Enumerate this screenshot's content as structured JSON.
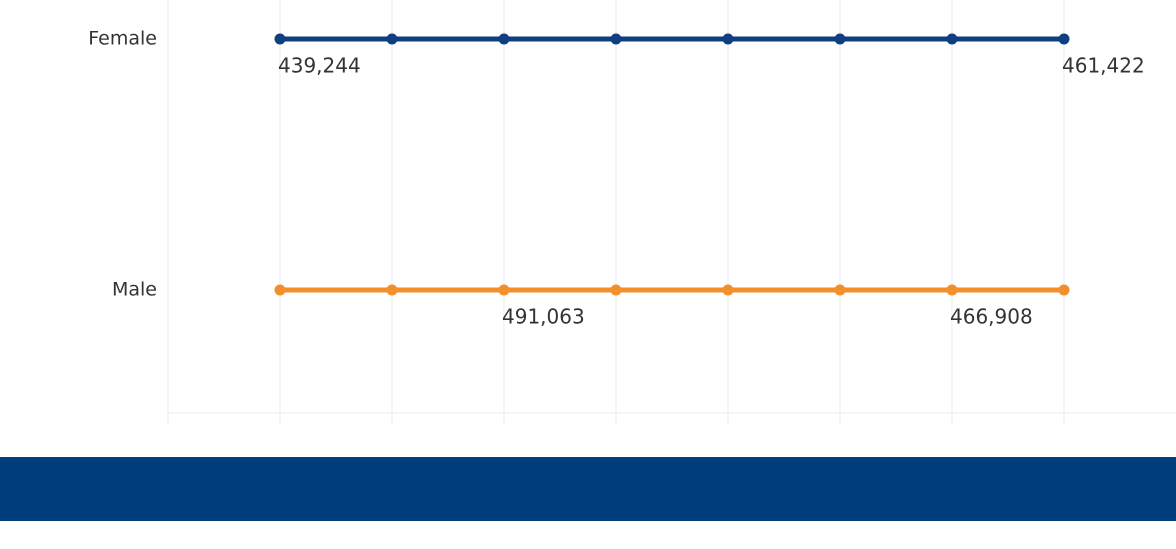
{
  "chart_data": {
    "type": "line",
    "categories": [
      null,
      null,
      null,
      null,
      null,
      null,
      null,
      null
    ],
    "rows": [
      "Female",
      "Male"
    ],
    "series": [
      {
        "name": "Female",
        "color": "#0e3f7e",
        "values": [
          439244,
          null,
          null,
          null,
          null,
          null,
          null,
          461422
        ],
        "value_labels": [
          "439,244",
          null,
          null,
          null,
          null,
          null,
          null,
          "461,422"
        ]
      },
      {
        "name": "Male",
        "color": "#f28e2b",
        "values": [
          null,
          null,
          491063,
          null,
          null,
          null,
          466908,
          null
        ],
        "value_labels": [
          null,
          null,
          "491,063",
          null,
          null,
          null,
          "466,908",
          null
        ]
      }
    ],
    "grid": true
  }
}
